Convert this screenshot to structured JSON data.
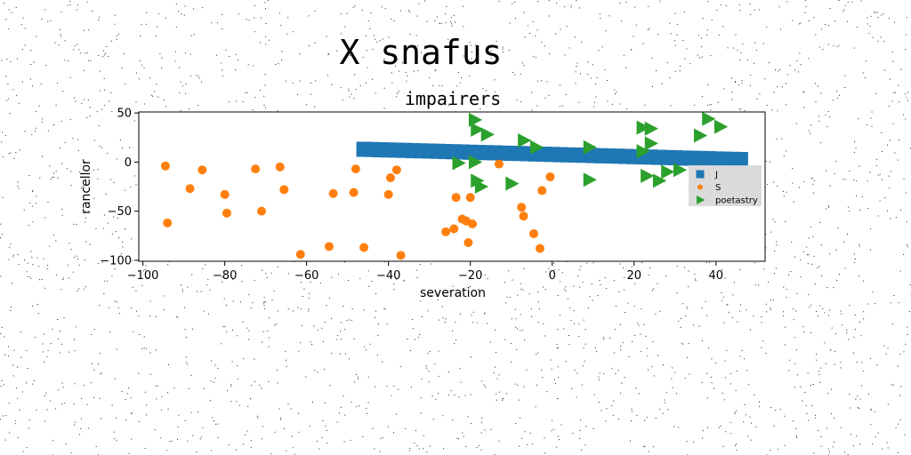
{
  "figure": {
    "suptitle": "X snafus"
  },
  "chart_data": {
    "type": "scatter",
    "title": "impairers",
    "xlabel": "severation",
    "ylabel": "rancellor",
    "xlim": [
      -101,
      52
    ],
    "ylim": [
      -101,
      51
    ],
    "xticks": [
      -100,
      -80,
      -60,
      -40,
      -20,
      0,
      20,
      40
    ],
    "yticks": [
      50,
      0,
      -50,
      -100
    ],
    "xtick_labels": [
      "−100",
      "−80",
      "−60",
      "−40",
      "−20",
      "0",
      "20",
      "40"
    ],
    "ytick_labels": [
      "50",
      "0",
      "−50",
      "−100"
    ],
    "grid": false,
    "legend_position": "right",
    "series": [
      {
        "name": "J",
        "marker": "square",
        "color": "#1f77b4",
        "points": [
          [
            -46,
            13
          ],
          [
            -44,
            12.8
          ],
          [
            -42,
            12.5
          ],
          [
            -40,
            12.3
          ],
          [
            -38,
            12.1
          ],
          [
            -36,
            11.9
          ],
          [
            -34,
            11.6
          ],
          [
            -32,
            11.4
          ],
          [
            -30,
            11.2
          ],
          [
            -28,
            11
          ],
          [
            -26,
            10.7
          ],
          [
            -24,
            10.5
          ],
          [
            -22,
            10.3
          ],
          [
            -20,
            10
          ],
          [
            -18,
            9.8
          ],
          [
            -16,
            9.6
          ],
          [
            -14,
            9.4
          ],
          [
            -12,
            9.1
          ],
          [
            -10,
            8.9
          ],
          [
            -8,
            8.7
          ],
          [
            -6,
            8.5
          ],
          [
            -4,
            8.2
          ],
          [
            -2,
            8
          ],
          [
            0,
            7.8
          ],
          [
            2,
            7.5
          ],
          [
            4,
            7.3
          ],
          [
            6,
            7.1
          ],
          [
            8,
            6.9
          ],
          [
            10,
            6.6
          ],
          [
            12,
            6.4
          ],
          [
            14,
            6.2
          ],
          [
            16,
            6
          ],
          [
            18,
            5.7
          ],
          [
            20,
            5.5
          ],
          [
            22,
            5.3
          ],
          [
            24,
            5.1
          ],
          [
            26,
            4.8
          ],
          [
            28,
            4.6
          ],
          [
            30,
            4.4
          ],
          [
            32,
            4.1
          ],
          [
            34,
            3.9
          ],
          [
            36,
            3.7
          ],
          [
            38,
            3.5
          ],
          [
            40,
            3.2
          ],
          [
            42,
            3
          ],
          [
            44,
            2.8
          ],
          [
            46,
            2.6
          ]
        ]
      },
      {
        "name": "S",
        "marker": "circle",
        "color": "#ff7f0e",
        "points": [
          [
            -94.5,
            -4
          ],
          [
            -94,
            -62
          ],
          [
            -88.5,
            -27
          ],
          [
            -85.5,
            -8
          ],
          [
            -80,
            -33
          ],
          [
            -79.5,
            -52
          ],
          [
            -72.5,
            -7
          ],
          [
            -71,
            -50
          ],
          [
            -66.5,
            -5
          ],
          [
            -65.5,
            -28
          ],
          [
            -61.5,
            -94
          ],
          [
            -54.5,
            -86
          ],
          [
            -53.5,
            -32
          ],
          [
            -48.5,
            -31
          ],
          [
            -48,
            -7
          ],
          [
            -46,
            -87
          ],
          [
            -40,
            -33
          ],
          [
            -39.5,
            -16
          ],
          [
            -38,
            -8
          ],
          [
            -37,
            -95
          ],
          [
            -26,
            -71
          ],
          [
            -24,
            -68
          ],
          [
            -23.5,
            -36
          ],
          [
            -22,
            -58
          ],
          [
            -21,
            -60
          ],
          [
            -20.5,
            -82
          ],
          [
            -20,
            -36
          ],
          [
            -19.5,
            -63
          ],
          [
            -13,
            -2
          ],
          [
            -7.5,
            -46
          ],
          [
            -7,
            -55
          ],
          [
            -4.5,
            -73
          ],
          [
            -3,
            -88
          ],
          [
            -2.5,
            -29
          ],
          [
            -0.5,
            -15
          ]
        ]
      },
      {
        "name": "poetastry",
        "marker": "triangle-right",
        "color": "#2ca02c",
        "points": [
          [
            -19,
            43
          ],
          [
            -18.5,
            33
          ],
          [
            -16,
            28
          ],
          [
            -23,
            -1
          ],
          [
            -19,
            0
          ],
          [
            -18.5,
            -19
          ],
          [
            -17.5,
            -25
          ],
          [
            -10,
            -22
          ],
          [
            -7,
            22
          ],
          [
            -4,
            15
          ],
          [
            9,
            15
          ],
          [
            9,
            -18
          ],
          [
            22,
            35
          ],
          [
            22,
            11
          ],
          [
            23,
            -14
          ],
          [
            24,
            34
          ],
          [
            24,
            19
          ],
          [
            26,
            -19
          ],
          [
            28,
            -10
          ],
          [
            31,
            -8
          ],
          [
            36,
            27
          ],
          [
            38,
            44
          ],
          [
            41,
            36
          ]
        ]
      }
    ]
  }
}
